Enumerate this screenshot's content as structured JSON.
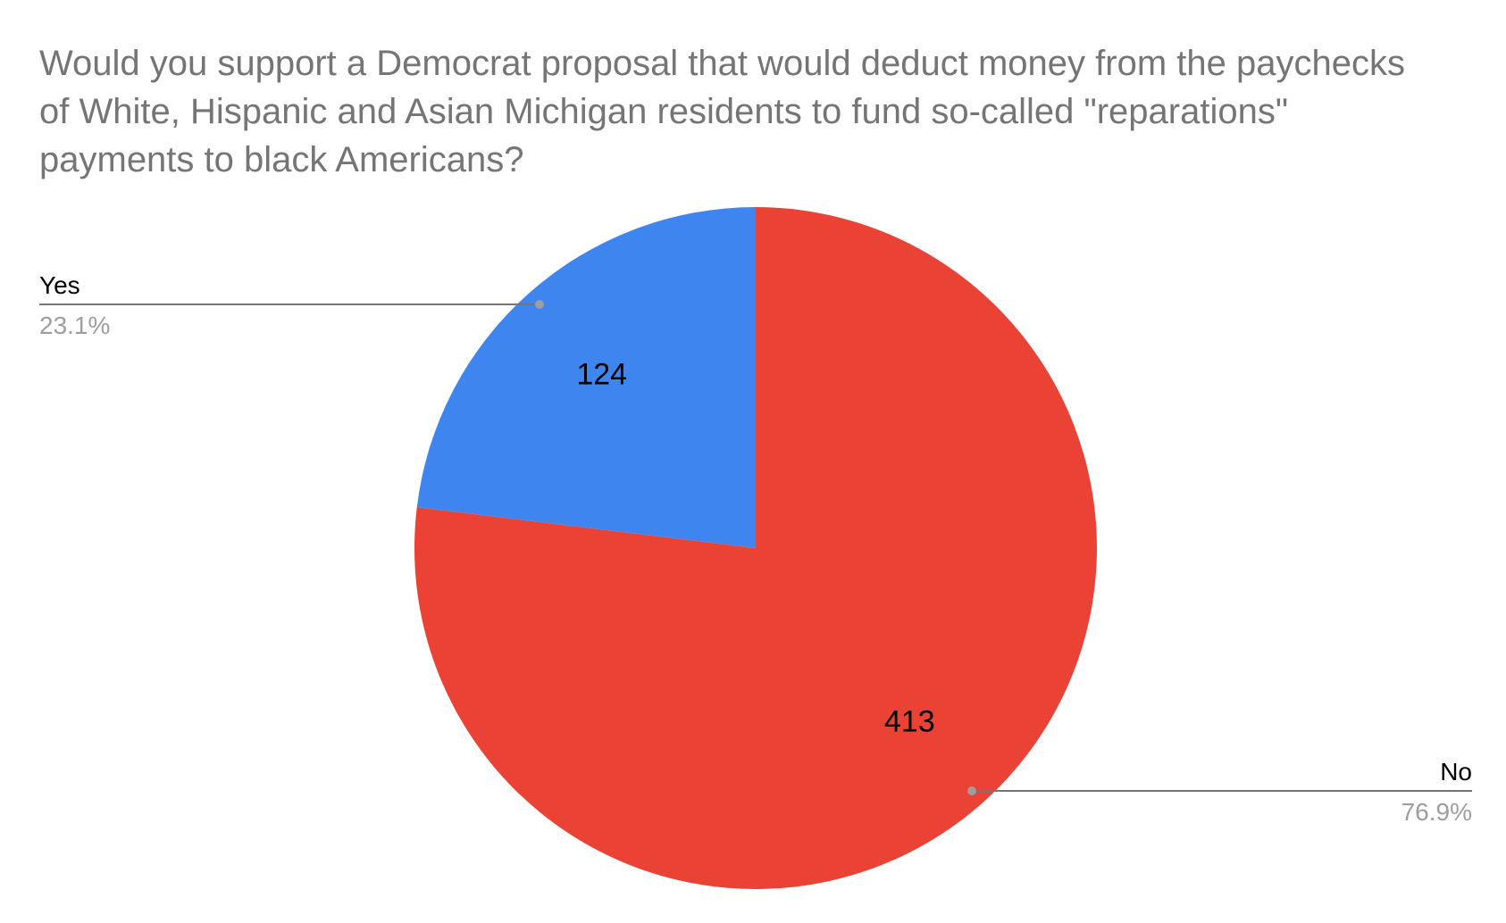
{
  "chart_data": {
    "type": "pie",
    "title_lines": [
      "Would you support a Democrat proposal that would deduct money from the paychecks",
      "of White, Hispanic and Asian Michigan residents to fund so-called \"reparations\"",
      "payments to black Americans?"
    ],
    "slices": [
      {
        "label": "Yes",
        "value": 124,
        "value_label": "124",
        "percent_label": "23.1%",
        "color": "#3e85ef"
      },
      {
        "label": "No",
        "value": 413,
        "value_label": "413",
        "percent_label": "76.9%",
        "color": "#ea4335"
      }
    ],
    "start_angle_deg": 0,
    "direction": "counter-clockwise",
    "label_color": "#000000",
    "percent_color": "#9e9e9e",
    "leader_line_color": "#757575"
  }
}
